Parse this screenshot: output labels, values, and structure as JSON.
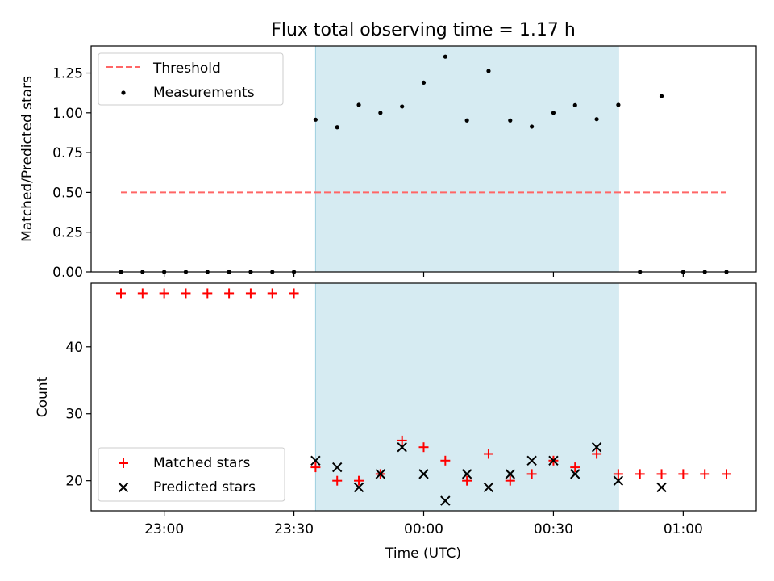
{
  "chart_data": [
    {
      "type": "scatter",
      "title": "Flux total observing time = 1.17 h",
      "xlabel": "",
      "ylabel": "Matched/Predicted stars",
      "ylim": [
        0,
        1.42
      ],
      "yticks": [
        "0.00",
        "0.25",
        "0.50",
        "0.75",
        "1.00",
        "1.25"
      ],
      "highlight_span": [
        "23:35",
        "00:45"
      ],
      "threshold": {
        "name": "Threshold",
        "value": 0.5,
        "x": [
          "22:50",
          "01:10"
        ],
        "color": "#ff6666"
      },
      "series": [
        {
          "name": "Measurements",
          "color": "#000000",
          "x": [
            "22:50",
            "22:55",
            "23:00",
            "23:05",
            "23:10",
            "23:15",
            "23:20",
            "23:25",
            "23:30",
            "23:35",
            "23:40",
            "23:45",
            "23:50",
            "23:55",
            "00:00",
            "00:05",
            "00:10",
            "00:15",
            "00:20",
            "00:25",
            "00:30",
            "00:35",
            "00:40",
            "00:45",
            "00:50",
            "00:55",
            "01:00",
            "01:05",
            "01:10"
          ],
          "values": [
            0,
            0,
            0,
            0,
            0,
            0,
            0,
            0,
            0,
            0.957,
            0.909,
            1.05,
            1.0,
            1.04,
            1.19,
            1.353,
            0.952,
            1.263,
            0.952,
            0.913,
            1.0,
            1.048,
            0.96,
            1.05,
            0,
            1.105,
            0,
            0,
            0
          ]
        }
      ],
      "legend": "upper-left"
    },
    {
      "type": "scatter",
      "title": "",
      "xlabel": "Time (UTC)",
      "ylabel": "Count",
      "ylim": [
        15.5,
        49.5
      ],
      "yticks": [
        "20",
        "30",
        "40"
      ],
      "xticks": [
        "23:00",
        "23:30",
        "00:00",
        "00:30",
        "01:00"
      ],
      "highlight_span": [
        "23:35",
        "00:45"
      ],
      "series": [
        {
          "name": "Matched stars",
          "marker": "+",
          "color": "#ff0000",
          "x": [
            "22:50",
            "22:55",
            "23:00",
            "23:05",
            "23:10",
            "23:15",
            "23:20",
            "23:25",
            "23:30",
            "23:35",
            "23:40",
            "23:45",
            "23:50",
            "23:55",
            "00:00",
            "00:05",
            "00:10",
            "00:15",
            "00:20",
            "00:25",
            "00:30",
            "00:35",
            "00:40",
            "00:45",
            "00:50",
            "00:55",
            "01:00",
            "01:05",
            "01:10"
          ],
          "values": [
            48,
            48,
            48,
            48,
            48,
            48,
            48,
            48,
            48,
            22,
            20,
            20,
            21,
            26,
            25,
            23,
            20,
            24,
            20,
            21,
            23,
            22,
            24,
            21,
            21,
            21,
            21,
            21,
            21
          ]
        },
        {
          "name": "Predicted stars",
          "marker": "x",
          "color": "#000000",
          "x": [
            "23:35",
            "23:40",
            "23:45",
            "23:50",
            "23:55",
            "00:00",
            "00:05",
            "00:10",
            "00:15",
            "00:20",
            "00:25",
            "00:30",
            "00:35",
            "00:40",
            "00:45",
            "00:55"
          ],
          "values": [
            23,
            22,
            19,
            21,
            25,
            21,
            17,
            21,
            19,
            21,
            23,
            23,
            21,
            25,
            20,
            19
          ]
        }
      ],
      "legend": "lower-left"
    }
  ],
  "colors": {
    "span": "#add8e6",
    "threshold": "#ff6666",
    "matched": "#ff0000",
    "predicted": "#000000"
  }
}
